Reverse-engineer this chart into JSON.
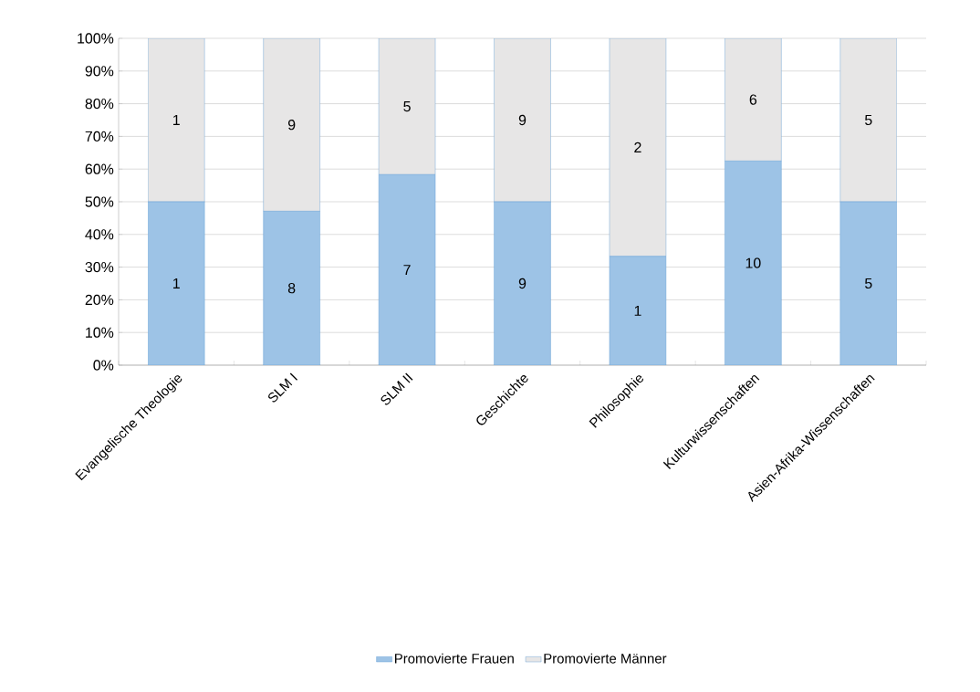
{
  "chart_data": {
    "type": "bar",
    "stacked": true,
    "categories": [
      "Evangelische Theologie",
      "SLM I",
      "SLM II",
      "Geschichte",
      "Philosophie",
      "Kulturwissenschaften",
      "Asien-Afrika-Wissenschaften"
    ],
    "series": [
      {
        "name": "Promovierte Frauen",
        "color": "#9dc3e6",
        "values": [
          50,
          47.1,
          58.3,
          50,
          33.3,
          62.5,
          50
        ]
      },
      {
        "name": "Promovierte Männer",
        "color": "#e7e6e6",
        "values": [
          50,
          52.9,
          41.7,
          50,
          66.7,
          37.5,
          50
        ]
      }
    ],
    "annotations": [
      "1",
      "8",
      "7",
      "9",
      "1",
      "10",
      "5",
      "1",
      "9",
      "5",
      "9",
      "2",
      "6",
      "5"
    ],
    "ylim": [
      0,
      100
    ],
    "yticks": [
      {
        "value": 0,
        "label": "0%"
      },
      {
        "value": 10,
        "label": "10%"
      },
      {
        "value": 20,
        "label": "20%"
      },
      {
        "value": 30,
        "label": "30%"
      },
      {
        "value": 40,
        "label": "40%"
      },
      {
        "value": 50,
        "label": "50%"
      },
      {
        "value": 60,
        "label": "60%"
      },
      {
        "value": 70,
        "label": "70%"
      },
      {
        "value": 80,
        "label": "80%"
      },
      {
        "value": 90,
        "label": "90%"
      },
      {
        "value": 100,
        "label": "100%"
      }
    ],
    "grid": "y",
    "legend": "bottom"
  }
}
